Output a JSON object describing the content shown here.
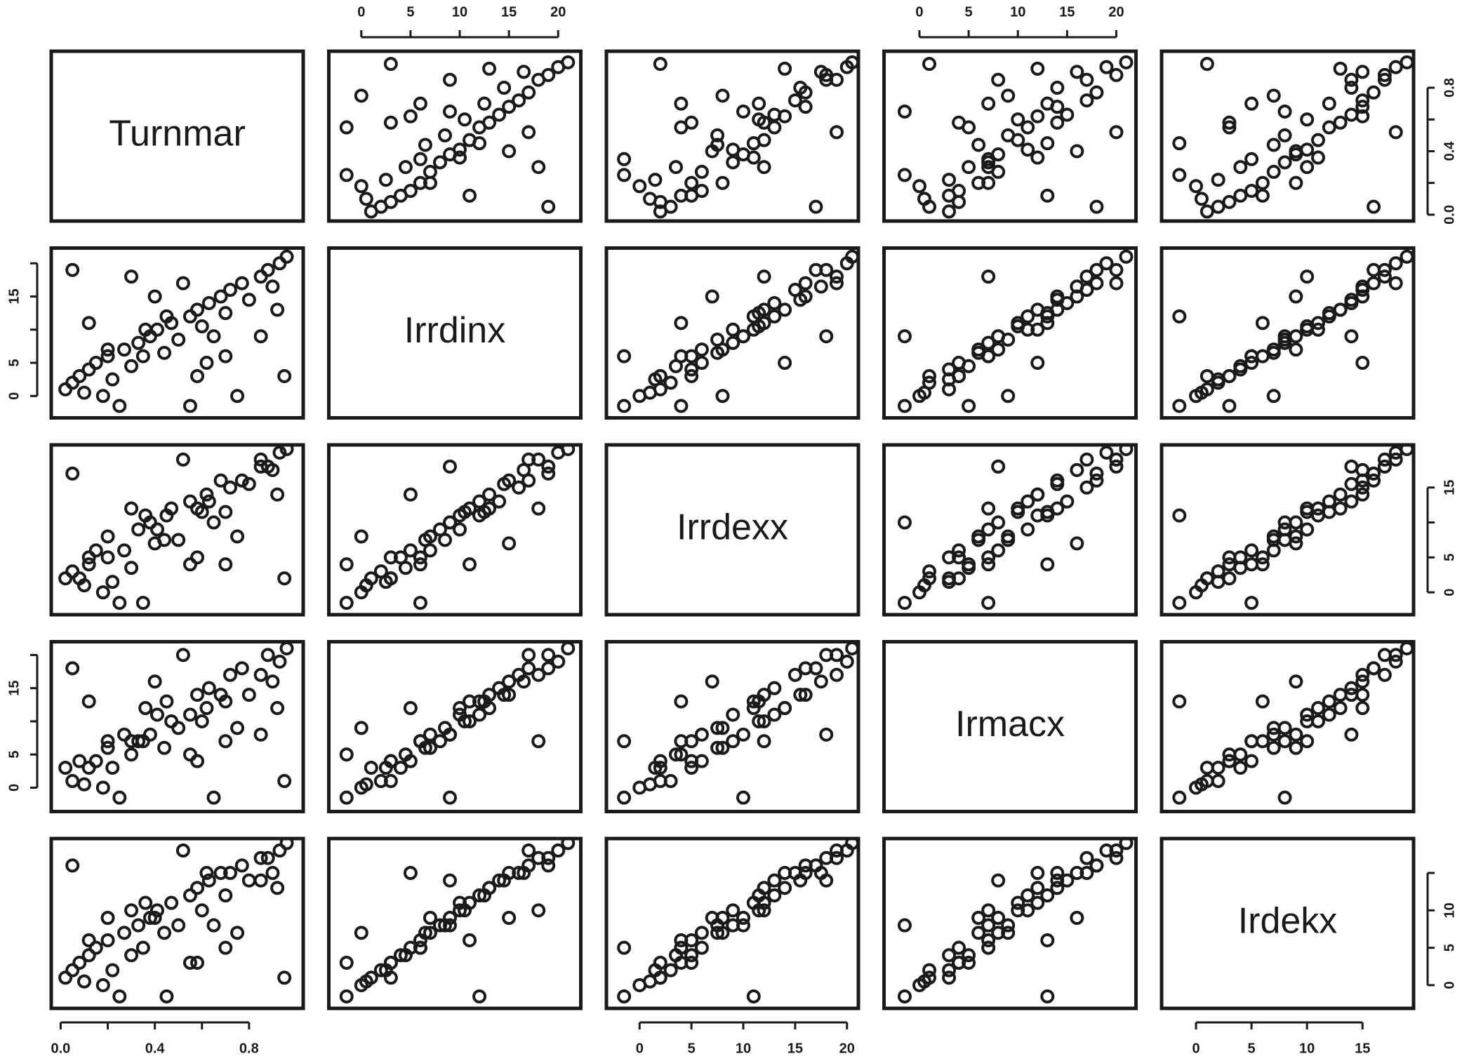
{
  "chart_data": {
    "type": "scatter-matrix",
    "variables": [
      {
        "name": "Turnmar",
        "lim": [
          -0.04,
          1.03
        ]
      },
      {
        "name": "Irrdinx",
        "lim": [
          -3.3,
          22.3
        ]
      },
      {
        "name": "Irrdexx",
        "lim": [
          -3.2,
          21.1
        ]
      },
      {
        "name": "Irmacx",
        "lim": [
          -3.6,
          22.0
        ]
      },
      {
        "name": "Irdekx",
        "lim": [
          -3.1,
          19.6
        ]
      }
    ],
    "axes": [
      {
        "variable": 1,
        "side": "top",
        "ticks": [
          0,
          5,
          10,
          15,
          20
        ]
      },
      {
        "variable": 3,
        "side": "top",
        "ticks": [
          0,
          5,
          10,
          15,
          20
        ]
      },
      {
        "variable": 0,
        "side": "right",
        "ticks": [
          {
            "value": 0,
            "label": "0.0"
          },
          0.4,
          0.8
        ],
        "minor_ticks": [
          0.2,
          0.6
        ]
      },
      {
        "variable": 2,
        "side": "right",
        "ticks": [
          0,
          5,
          15
        ],
        "minor_ticks": [
          10
        ]
      },
      {
        "variable": 4,
        "side": "right",
        "ticks": [
          0,
          5,
          10
        ],
        "minor_ticks": [
          15
        ]
      },
      {
        "variable": 1,
        "side": "left",
        "ticks": [
          0,
          5,
          15
        ],
        "minor_ticks": [
          10,
          20
        ]
      },
      {
        "variable": 3,
        "side": "left",
        "ticks": [
          0,
          5,
          15
        ],
        "minor_ticks": [
          10,
          20
        ]
      },
      {
        "variable": 0,
        "side": "bottom",
        "ticks": [
          {
            "value": 0,
            "label": "0.0"
          },
          0.4,
          0.8
        ],
        "minor_ticks": [
          0.2,
          0.6
        ]
      },
      {
        "variable": 2,
        "side": "bottom",
        "ticks": [
          0,
          5,
          10,
          15,
          20
        ]
      },
      {
        "variable": 4,
        "side": "bottom",
        "ticks": [
          0,
          5,
          10,
          15
        ]
      }
    ],
    "color": "#1a1a1a",
    "observations": [
      [
        0.05,
        2,
        3,
        1,
        2
      ],
      [
        0.12,
        4,
        5,
        3,
        4
      ],
      [
        0.2,
        6,
        5,
        7,
        6
      ],
      [
        0.33,
        8,
        9,
        7,
        8
      ],
      [
        0.41,
        10,
        9,
        11,
        10
      ],
      [
        0.55,
        12,
        13,
        11,
        12
      ],
      [
        0.63,
        14,
        13,
        15,
        14
      ],
      [
        0.72,
        16,
        15,
        17,
        15
      ],
      [
        0.85,
        18,
        19,
        17,
        17
      ],
      [
        0.93,
        20,
        20,
        19,
        18
      ],
      [
        0.02,
        1,
        2,
        3,
        1
      ],
      [
        0.08,
        3,
        2,
        4,
        3
      ],
      [
        0.15,
        5,
        6,
        4,
        5
      ],
      [
        0.27,
        7,
        6,
        8,
        7
      ],
      [
        0.38,
        9,
        10,
        8,
        9
      ],
      [
        0.47,
        11,
        12,
        10,
        11
      ],
      [
        0.58,
        13,
        12,
        14,
        13
      ],
      [
        0.68,
        15,
        16,
        14,
        15
      ],
      [
        0.77,
        17,
        16,
        18,
        16
      ],
      [
        0.88,
        19,
        18,
        20,
        17
      ],
      [
        0.1,
        0.5,
        1,
        0.5,
        0.5
      ],
      [
        0.22,
        2.5,
        1.5,
        3,
        2
      ],
      [
        0.3,
        4.5,
        3.5,
        5,
        4
      ],
      [
        0.44,
        6.5,
        7.5,
        6,
        7
      ],
      [
        0.5,
        8.5,
        7.5,
        9,
        8
      ],
      [
        0.6,
        10.5,
        11.5,
        10,
        10
      ],
      [
        0.7,
        12.5,
        11.5,
        13,
        12
      ],
      [
        0.8,
        14.5,
        15.5,
        14,
        14
      ],
      [
        0.9,
        16.5,
        17.5,
        16,
        15
      ],
      [
        0.96,
        21,
        20.5,
        21,
        19
      ],
      [
        0.25,
        -1.5,
        -1.5,
        -1.5,
        -1.5
      ],
      [
        0.55,
        -1.5,
        4,
        5,
        3
      ],
      [
        0.35,
        6,
        -1.5,
        7,
        5
      ],
      [
        0.65,
        9,
        10,
        -1.5,
        8
      ],
      [
        0.45,
        12,
        11,
        13,
        -1.5
      ],
      [
        0.18,
        0,
        0,
        0,
        0
      ],
      [
        0.75,
        0,
        8,
        9,
        7
      ],
      [
        0.05,
        19,
        17,
        18,
        16
      ],
      [
        0.95,
        3,
        2,
        1,
        1
      ],
      [
        0.4,
        15,
        7,
        16,
        9
      ],
      [
        0.85,
        9,
        18,
        8,
        14
      ],
      [
        0.3,
        18,
        12,
        7,
        10
      ],
      [
        0.62,
        5,
        14,
        12,
        15
      ],
      [
        0.12,
        11,
        4,
        13,
        6
      ],
      [
        0.52,
        17,
        19,
        20,
        18
      ],
      [
        0.2,
        7,
        8,
        6,
        9
      ],
      [
        0.58,
        3,
        5,
        4,
        3
      ],
      [
        0.92,
        13,
        14,
        12,
        13
      ],
      [
        0.36,
        10,
        11,
        12,
        11
      ],
      [
        0.7,
        6,
        4,
        7,
        5
      ]
    ]
  }
}
